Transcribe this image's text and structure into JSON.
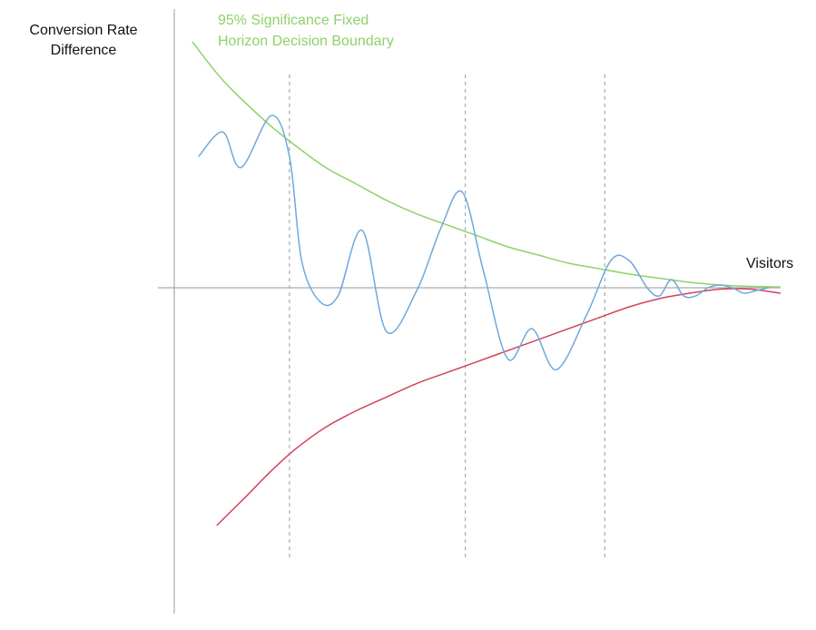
{
  "chart_data": {
    "type": "line",
    "title": "",
    "xlabel": "Visitors",
    "ylabel_lines": [
      "Conversion Rate",
      "Difference"
    ],
    "annotations": [
      {
        "lines": [
          "95% Significance Fixed",
          "Horizon Decision Boundary"
        ],
        "color": "#8fd16a"
      }
    ],
    "xlim": [
      0,
      100
    ],
    "ylim": [
      -100,
      100
    ],
    "grid": false,
    "legend": "none",
    "checkpoints": [
      19,
      48,
      71
    ],
    "series": [
      {
        "key": "upper_boundary",
        "color": "#8fd16a",
        "x": [
          3,
          8,
          15,
          20,
          25,
          30,
          35,
          40,
          45,
          50,
          55,
          60,
          65,
          70,
          75,
          80,
          85,
          90,
          95,
          100
        ],
        "y": [
          90,
          76,
          61,
          52,
          44,
          38,
          32,
          27,
          23,
          19,
          15,
          12,
          9,
          7,
          5,
          3.5,
          2,
          1,
          0.5,
          0.3
        ]
      },
      {
        "key": "lower_boundary",
        "color": "#d2435a",
        "x": [
          7,
          12,
          16,
          20,
          25,
          30,
          35,
          40,
          45,
          50,
          55,
          60,
          65,
          70,
          75,
          80,
          85,
          90,
          95,
          100
        ],
        "y": [
          -87,
          -76,
          -67,
          -59,
          -51,
          -45,
          -40,
          -35,
          -31,
          -27,
          -23,
          -19,
          -15,
          -11,
          -7,
          -4,
          -2,
          -0.5,
          -0.5,
          -2
        ]
      },
      {
        "key": "observed_difference",
        "color": "#6fa8dc",
        "x": [
          4,
          8,
          11,
          16,
          19,
          21,
          24,
          27,
          31,
          35,
          40,
          44,
          47.5,
          51,
          55,
          59,
          63,
          68,
          72,
          75,
          78,
          80,
          82,
          84,
          86,
          88,
          90,
          92,
          94,
          96,
          98
        ],
        "y": [
          48,
          57,
          44,
          63,
          48,
          10,
          -5,
          -3,
          21,
          -16,
          -1,
          22,
          35,
          6,
          -26,
          -15,
          -30,
          -10,
          10,
          10,
          0,
          -3,
          3,
          -3,
          -3,
          0,
          1,
          0,
          -2,
          -1,
          0
        ]
      }
    ]
  }
}
